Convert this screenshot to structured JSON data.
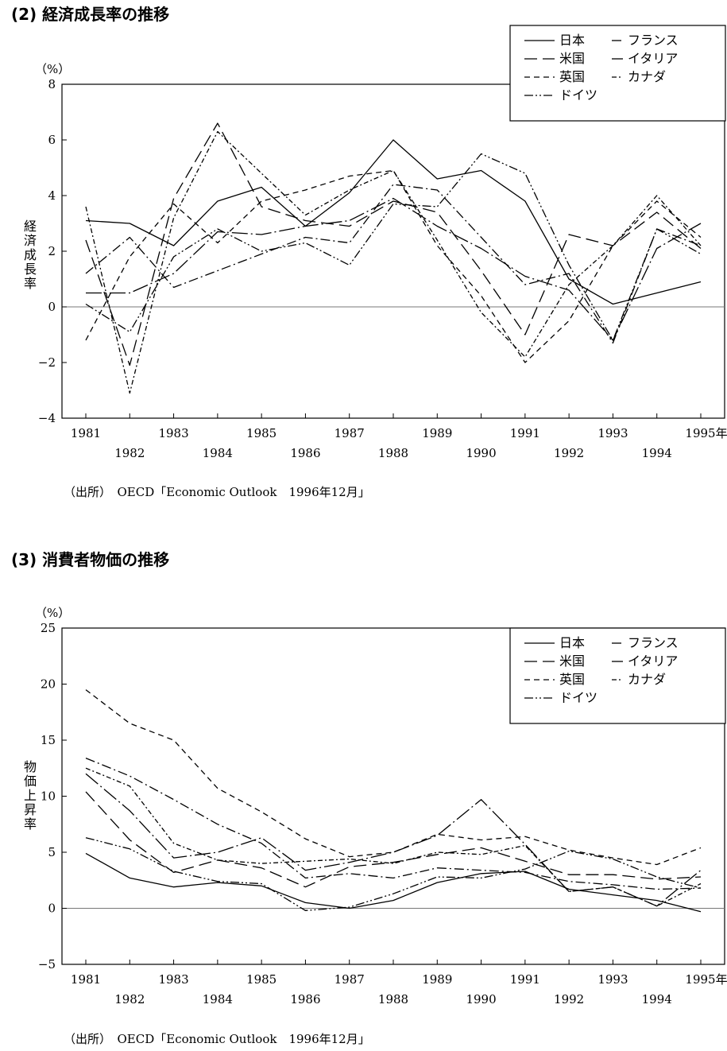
{
  "charts": [
    {
      "section_title": "(2) 経済成長率の推移",
      "source": "（出所）　OECD「Economic Outlook　1996年12月」",
      "chart_data": {
        "type": "line",
        "unit": "（%）",
        "ylabel": "経済成長率",
        "ylim": [
          -4,
          8
        ],
        "yticks": [
          -4,
          -2,
          0,
          2,
          4,
          6,
          8
        ],
        "ytick_labels": [
          "−4",
          "−2",
          "0",
          "2",
          "4",
          "6",
          "8"
        ],
        "x": [
          1981,
          1982,
          1983,
          1984,
          1985,
          1986,
          1987,
          1988,
          1989,
          1990,
          1991,
          1992,
          1993,
          1994,
          1995
        ],
        "xtick_labels": [
          "1981",
          "1982",
          "1983",
          "1984",
          "1985",
          "1986",
          "1987",
          "1988",
          "1989",
          "1990",
          "1991",
          "1992",
          "1993",
          "1994",
          "1995年"
        ],
        "grid": false,
        "zero_line": true,
        "legend_position": "top-right",
        "series": [
          {
            "name": "日本",
            "style": "solid",
            "values": [
              3.1,
              3.0,
              2.2,
              3.8,
              4.3,
              2.9,
              4.1,
              6.0,
              4.6,
              4.9,
              3.8,
              1.0,
              0.1,
              0.5,
              0.9
            ]
          },
          {
            "name": "米国",
            "style": "long-dash",
            "values": [
              2.4,
              -2.1,
              3.9,
              6.6,
              3.6,
              3.1,
              2.9,
              3.8,
              3.4,
              1.3,
              -1.0,
              2.6,
              2.2,
              3.4,
              2.1
            ]
          },
          {
            "name": "英国",
            "style": "short-dash",
            "values": [
              -1.2,
              1.8,
              3.7,
              2.3,
              3.8,
              4.2,
              4.7,
              4.9,
              2.2,
              0.4,
              -2.0,
              -0.5,
              2.2,
              3.8,
              2.5
            ]
          },
          {
            "name": "ドイツ",
            "style": "dash-dot-dot",
            "values": [
              0.1,
              -0.9,
              1.8,
              2.8,
              2.0,
              2.3,
              1.5,
              3.7,
              3.6,
              5.5,
              4.8,
              1.5,
              -1.2,
              2.8,
              1.9
            ]
          },
          {
            "name": "フランス",
            "style": "dash-dot",
            "values": [
              1.2,
              2.5,
              0.7,
              1.3,
              1.9,
              2.5,
              2.3,
              4.4,
              4.2,
              2.5,
              0.8,
              1.2,
              -1.3,
              2.8,
              2.2
            ]
          },
          {
            "name": "イタリア",
            "style": "dash-dot-long",
            "values": [
              0.5,
              0.5,
              1.2,
              2.7,
              2.6,
              2.9,
              3.1,
              3.9,
              2.9,
              2.1,
              1.1,
              0.6,
              -1.2,
              2.1,
              3.0
            ]
          },
          {
            "name": "カナダ",
            "style": "dash-dot-short",
            "values": [
              3.6,
              -3.1,
              3.2,
              6.3,
              4.8,
              3.3,
              4.2,
              4.9,
              2.4,
              -0.2,
              -1.8,
              0.8,
              2.2,
              4.0,
              2.2
            ]
          }
        ]
      }
    },
    {
      "section_title": "(3) 消費者物価の推移",
      "source": "（出所）　OECD「Economic Outlook　1996年12月」",
      "chart_data": {
        "type": "line",
        "unit": "（%）",
        "ylabel": "物価上昇率",
        "ylim": [
          -5,
          25
        ],
        "yticks": [
          -5,
          0,
          5,
          10,
          15,
          20,
          25
        ],
        "ytick_labels": [
          "−5",
          "0",
          "5",
          "10",
          "15",
          "20",
          "25"
        ],
        "x": [
          1981,
          1982,
          1983,
          1984,
          1985,
          1986,
          1987,
          1988,
          1989,
          1990,
          1991,
          1992,
          1993,
          1994,
          1995
        ],
        "xtick_labels": [
          "1981",
          "1982",
          "1983",
          "1984",
          "1985",
          "1986",
          "1987",
          "1988",
          "1989",
          "1990",
          "1991",
          "1992",
          "1993",
          "1994",
          "1995年"
        ],
        "grid": false,
        "zero_line": true,
        "legend_position": "top-right",
        "series": [
          {
            "name": "日本",
            "style": "solid",
            "values": [
              4.9,
              2.7,
              1.9,
              2.3,
              2.0,
              0.5,
              0.0,
              0.7,
              2.3,
              3.1,
              3.3,
              1.7,
              1.2,
              0.7,
              -0.3
            ]
          },
          {
            "name": "米国",
            "style": "long-dash",
            "values": [
              10.4,
              6.1,
              3.2,
              4.3,
              3.6,
              1.9,
              3.7,
              4.1,
              4.8,
              5.4,
              4.2,
              3.0,
              3.0,
              2.6,
              2.8
            ]
          },
          {
            "name": "英国",
            "style": "short-dash",
            "values": [
              19.5,
              16.5,
              15.0,
              10.7,
              8.6,
              6.2,
              4.6,
              5.0,
              6.6,
              6.1,
              6.4,
              5.2,
              4.5,
              3.9,
              5.4
            ]
          },
          {
            "name": "ドイツ",
            "style": "dash-dot-dot",
            "values": [
              6.3,
              5.3,
              3.3,
              2.4,
              2.2,
              -0.2,
              0.1,
              1.3,
              2.8,
              2.7,
              3.5,
              5.1,
              4.4,
              2.8,
              1.8
            ]
          },
          {
            "name": "フランス",
            "style": "dash-dot",
            "values": [
              13.4,
              11.8,
              9.7,
              7.5,
              5.8,
              2.7,
              3.1,
              2.7,
              3.6,
              3.4,
              3.2,
              2.4,
              2.1,
              1.7,
              1.8
            ]
          },
          {
            "name": "イタリア",
            "style": "dash-dot-long",
            "values": [
              12.0,
              8.7,
              4.5,
              5.0,
              6.3,
              3.4,
              4.1,
              5.0,
              6.5,
              9.7,
              5.7,
              1.5,
              1.9,
              0.2,
              3.4
            ]
          },
          {
            "name": "カナダ",
            "style": "dash-dot-short",
            "values": [
              12.5,
              10.9,
              5.8,
              4.3,
              4.0,
              4.2,
              4.4,
              4.0,
              5.0,
              4.8,
              5.6,
              1.5,
              1.9,
              0.2,
              2.2
            ]
          }
        ]
      }
    }
  ]
}
